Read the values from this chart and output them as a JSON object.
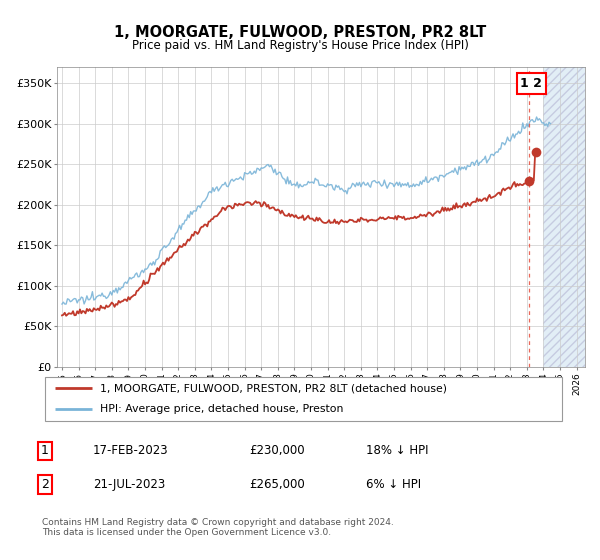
{
  "title": "1, MOORGATE, FULWOOD, PRESTON, PR2 8LT",
  "subtitle": "Price paid vs. HM Land Registry's House Price Index (HPI)",
  "ylabel_ticks": [
    "£0",
    "£50K",
    "£100K",
    "£150K",
    "£200K",
    "£250K",
    "£300K",
    "£350K"
  ],
  "ytick_values": [
    0,
    50000,
    100000,
    150000,
    200000,
    250000,
    300000,
    350000
  ],
  "ylim": [
    0,
    370000
  ],
  "xlim_start": 1994.7,
  "xlim_end": 2026.5,
  "hpi_color": "#7ab4d8",
  "price_color": "#c0392b",
  "dashed_color": "#e74c3c",
  "sale1_date_x": 2023.12,
  "sale1_price": 230000,
  "sale2_date_x": 2023.54,
  "sale2_price": 265000,
  "legend_label1": "1, MOORGATE, FULWOOD, PRESTON, PR2 8LT (detached house)",
  "legend_label2": "HPI: Average price, detached house, Preston",
  "table_row1_num": "1",
  "table_row1_date": "17-FEB-2023",
  "table_row1_price": "£230,000",
  "table_row1_hpi": "18% ↓ HPI",
  "table_row2_num": "2",
  "table_row2_date": "21-JUL-2023",
  "table_row2_price": "£265,000",
  "table_row2_hpi": "6% ↓ HPI",
  "footer": "Contains HM Land Registry data © Crown copyright and database right 2024.\nThis data is licensed under the Open Government Licence v3.0.",
  "hatch_color": "#d0e4f0",
  "background_color": "#ffffff",
  "grid_color": "#cccccc",
  "future_start": 2024.0
}
